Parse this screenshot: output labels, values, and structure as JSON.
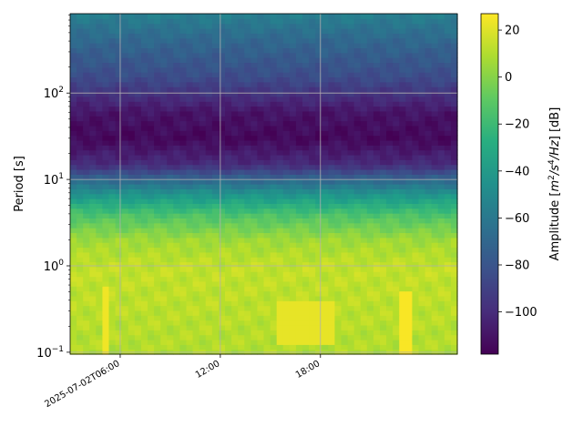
{
  "chart_data": {
    "type": "heatmap",
    "title": "",
    "xlabel": "",
    "ylabel": "Period [s]",
    "colorbar_label_parts": [
      "Amplitude [",
      "m",
      "2",
      "/s",
      "4",
      "/Hz",
      "] [dB]"
    ],
    "y_scale": "log",
    "ylim": [
      0.095,
      830
    ],
    "x_range_hours": [
      3.0,
      26.2
    ],
    "x_ticks": [
      {
        "hour": 6,
        "label": "2025-07-02T06:00"
      },
      {
        "hour": 12,
        "label": "12:00"
      },
      {
        "hour": 18,
        "label": "18:00"
      }
    ],
    "y_ticks": [
      {
        "value": 0.1,
        "base": "10",
        "exp": "−1"
      },
      {
        "value": 1,
        "base": "10",
        "exp": "0"
      },
      {
        "value": 10,
        "base": "10",
        "exp": "1"
      },
      {
        "value": 100,
        "base": "10",
        "exp": "2"
      }
    ],
    "colorbar": {
      "colormap": "viridis",
      "range": [
        -118,
        27
      ],
      "ticks": [
        20,
        0,
        -20,
        -40,
        -60,
        -80,
        -100
      ],
      "tick_labels": [
        "20",
        "0",
        "−20",
        "−40",
        "−60",
        "−80",
        "−100"
      ]
    },
    "grid": true,
    "amplitude_profile_db": [
      {
        "period": 0.1,
        "db": 10
      },
      {
        "period": 0.3,
        "db": 12
      },
      {
        "period": 1,
        "db": 14
      },
      {
        "period": 2,
        "db": 6
      },
      {
        "period": 4,
        "db": -15
      },
      {
        "period": 7,
        "db": -45
      },
      {
        "period": 10,
        "db": -70
      },
      {
        "period": 15,
        "db": -100
      },
      {
        "period": 30,
        "db": -115
      },
      {
        "period": 60,
        "db": -110
      },
      {
        "period": 150,
        "db": -85
      },
      {
        "period": 400,
        "db": -70
      },
      {
        "period": 830,
        "db": -55
      }
    ],
    "high_amplitude_bursts": [
      {
        "hour_start": 4.8,
        "hour_end": 5.2,
        "period_min": 0.1,
        "period_max": 0.55,
        "db": 24
      },
      {
        "hour_start": 15.5,
        "hour_end": 19.0,
        "period_min": 0.12,
        "period_max": 0.4,
        "db": 22
      },
      {
        "hour_start": 22.8,
        "hour_end": 23.6,
        "period_min": 0.1,
        "period_max": 0.5,
        "db": 26
      }
    ]
  }
}
